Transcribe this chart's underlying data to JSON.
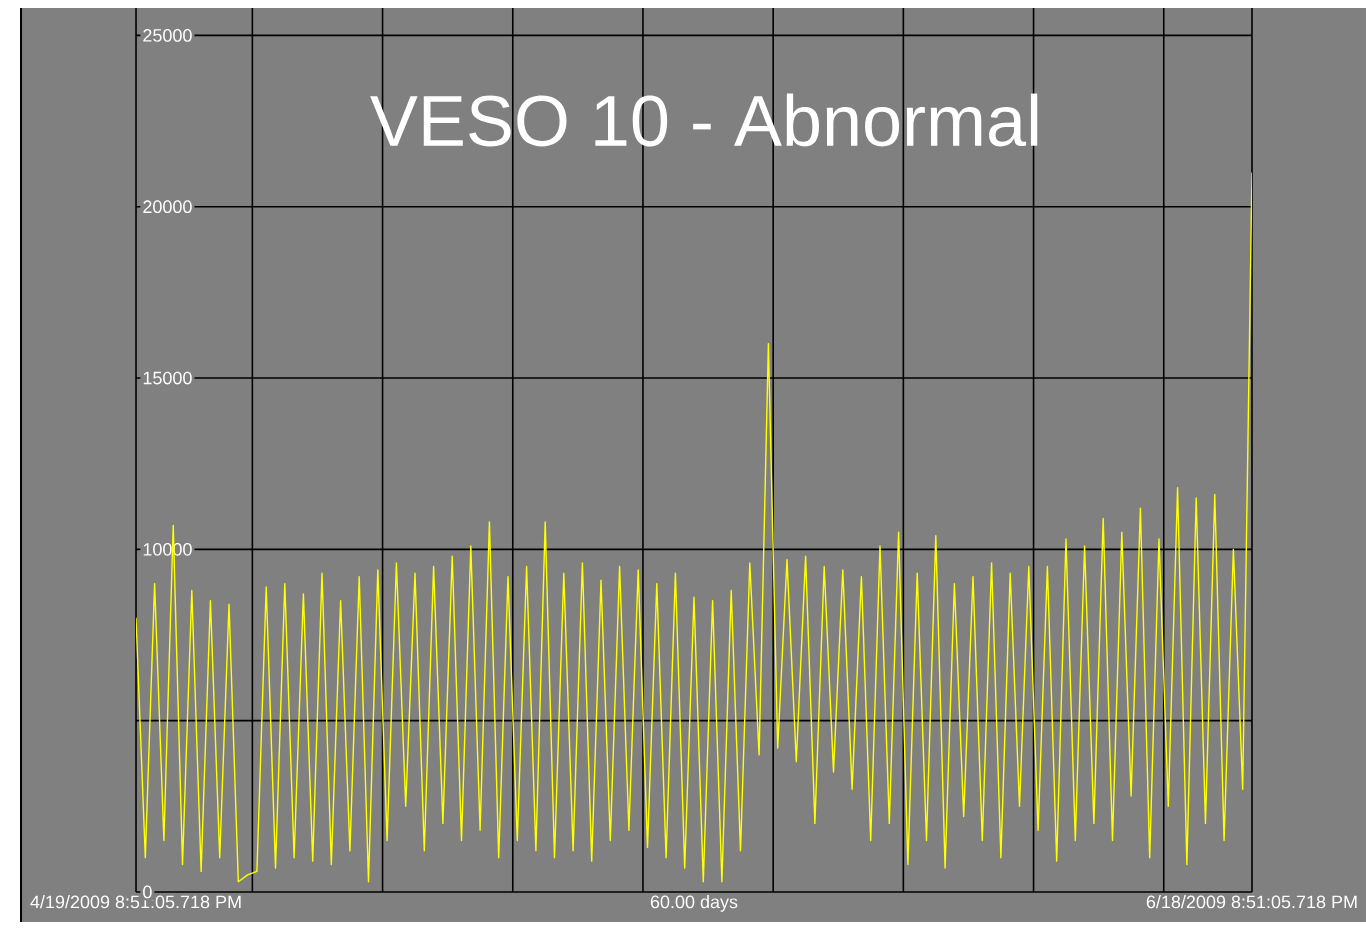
{
  "chart_data": {
    "type": "line",
    "title": "VESO 10 - Abnormal",
    "xlabel": "60.00 days",
    "xlim": [
      "2009-04-19T20:51",
      "2009-06-18T20:51"
    ],
    "xticks": [
      {
        "value": "2009-04-19T20:51",
        "label": "4/19/2009 8:51:05.718 PM"
      },
      {
        "value": "2009-04-26T03:00",
        "label": null
      },
      {
        "value": "2009-05-03T03:00",
        "label": null
      },
      {
        "value": "2009-05-10T03:00",
        "label": null
      },
      {
        "value": "2009-05-17T03:00",
        "label": null
      },
      {
        "value": "2009-05-24T03:00",
        "label": null
      },
      {
        "value": "2009-05-31T03:00",
        "label": null
      },
      {
        "value": "2009-06-07T03:00",
        "label": null
      },
      {
        "value": "2009-06-14T03:00",
        "label": null
      },
      {
        "value": "2009-06-18T20:51",
        "label": "6/18/2009 8:51:05.718 PM"
      }
    ],
    "ylim": [
      0,
      25800
    ],
    "yticks": [
      0,
      {
        "value": 5000,
        "label": null
      },
      10000,
      15000,
      20000,
      25000
    ],
    "grid": true,
    "marker": "none",
    "line_style": "solid",
    "x": [
      "2009-04-19T20:51",
      "2009-04-20T08:51",
      "2009-04-20T20:51",
      "2009-04-21T08:51",
      "2009-04-21T20:51",
      "2009-04-22T08:51",
      "2009-04-22T20:51",
      "2009-04-23T08:51",
      "2009-04-23T20:51",
      "2009-04-24T08:51",
      "2009-04-24T20:51",
      "2009-04-25T08:51",
      "2009-04-25T20:51",
      "2009-04-26T08:51",
      "2009-04-26T20:51",
      "2009-04-27T08:51",
      "2009-04-27T20:51",
      "2009-04-28T08:51",
      "2009-04-28T20:51",
      "2009-04-29T08:51",
      "2009-04-29T20:51",
      "2009-04-30T08:51",
      "2009-04-30T20:51",
      "2009-05-01T08:51",
      "2009-05-01T20:51",
      "2009-05-02T08:51",
      "2009-05-02T20:51",
      "2009-05-03T08:51",
      "2009-05-03T20:51",
      "2009-05-04T08:51",
      "2009-05-04T20:51",
      "2009-05-05T08:51",
      "2009-05-05T20:51",
      "2009-05-06T08:51",
      "2009-05-06T20:51",
      "2009-05-07T08:51",
      "2009-05-07T20:51",
      "2009-05-08T08:51",
      "2009-05-08T20:51",
      "2009-05-09T08:51",
      "2009-05-09T20:51",
      "2009-05-10T08:51",
      "2009-05-10T20:51",
      "2009-05-11T08:51",
      "2009-05-11T20:51",
      "2009-05-12T08:51",
      "2009-05-12T20:51",
      "2009-05-13T08:51",
      "2009-05-13T20:51",
      "2009-05-14T08:51",
      "2009-05-14T20:51",
      "2009-05-15T08:51",
      "2009-05-15T20:51",
      "2009-05-16T08:51",
      "2009-05-16T20:51",
      "2009-05-17T08:51",
      "2009-05-17T20:51",
      "2009-05-18T08:51",
      "2009-05-18T20:51",
      "2009-05-19T08:51",
      "2009-05-19T20:51",
      "2009-05-20T08:51",
      "2009-05-20T20:51",
      "2009-05-21T08:51",
      "2009-05-21T20:51",
      "2009-05-22T08:51",
      "2009-05-22T20:51",
      "2009-05-23T08:51",
      "2009-05-23T20:51",
      "2009-05-24T08:51",
      "2009-05-24T20:51",
      "2009-05-25T08:51",
      "2009-05-25T20:51",
      "2009-05-26T08:51",
      "2009-05-26T20:51",
      "2009-05-27T08:51",
      "2009-05-27T20:51",
      "2009-05-28T08:51",
      "2009-05-28T20:51",
      "2009-05-29T08:51",
      "2009-05-29T20:51",
      "2009-05-30T08:51",
      "2009-05-30T20:51",
      "2009-05-31T08:51",
      "2009-05-31T20:51",
      "2009-06-01T08:51",
      "2009-06-01T20:51",
      "2009-06-02T08:51",
      "2009-06-02T20:51",
      "2009-06-03T08:51",
      "2009-06-03T20:51",
      "2009-06-04T08:51",
      "2009-06-04T20:51",
      "2009-06-05T08:51",
      "2009-06-05T20:51",
      "2009-06-06T08:51",
      "2009-06-06T20:51",
      "2009-06-07T08:51",
      "2009-06-07T20:51",
      "2009-06-08T08:51",
      "2009-06-08T20:51",
      "2009-06-09T08:51",
      "2009-06-09T20:51",
      "2009-06-10T08:51",
      "2009-06-10T20:51",
      "2009-06-11T08:51",
      "2009-06-11T20:51",
      "2009-06-12T08:51",
      "2009-06-12T20:51",
      "2009-06-13T08:51",
      "2009-06-13T20:51",
      "2009-06-14T08:51",
      "2009-06-14T20:51",
      "2009-06-15T08:51",
      "2009-06-15T20:51",
      "2009-06-16T08:51",
      "2009-06-16T20:51",
      "2009-06-17T08:51",
      "2009-06-17T20:51",
      "2009-06-18T08:51",
      "2009-06-18T20:51"
    ],
    "series": [
      {
        "color": "#ffff00",
        "values": [
          8000,
          1000,
          9000,
          1500,
          10700,
          800,
          8800,
          600,
          8500,
          1000,
          8400,
          300,
          500,
          600,
          8900,
          700,
          9000,
          1000,
          8700,
          900,
          9300,
          800,
          8500,
          1200,
          9200,
          300,
          9400,
          1500,
          9600,
          2500,
          9300,
          1200,
          9500,
          2000,
          9800,
          1500,
          10100,
          1800,
          10800,
          1000,
          9200,
          1500,
          9500,
          1200,
          10800,
          1000,
          9300,
          1200,
          9600,
          900,
          9100,
          1500,
          9500,
          1800,
          9400,
          1300,
          9000,
          1000,
          9300,
          700,
          8600,
          300,
          8500,
          300,
          8800,
          1200,
          9600,
          4000,
          16000,
          4200,
          9700,
          3800,
          9800,
          2000,
          9500,
          3500,
          9400,
          3000,
          9200,
          1500,
          10100,
          2000,
          10500,
          800,
          9300,
          1500,
          10400,
          700,
          9000,
          2200,
          9200,
          1500,
          9600,
          1000,
          9300,
          2500,
          9500,
          1800,
          9500,
          900,
          10300,
          1500,
          10100,
          2000,
          10900,
          1500,
          10500,
          2800,
          11200,
          1000,
          10300,
          2500,
          11800,
          800,
          11500,
          2000,
          11600,
          1500,
          10000,
          3000,
          21000
        ]
      }
    ]
  }
}
